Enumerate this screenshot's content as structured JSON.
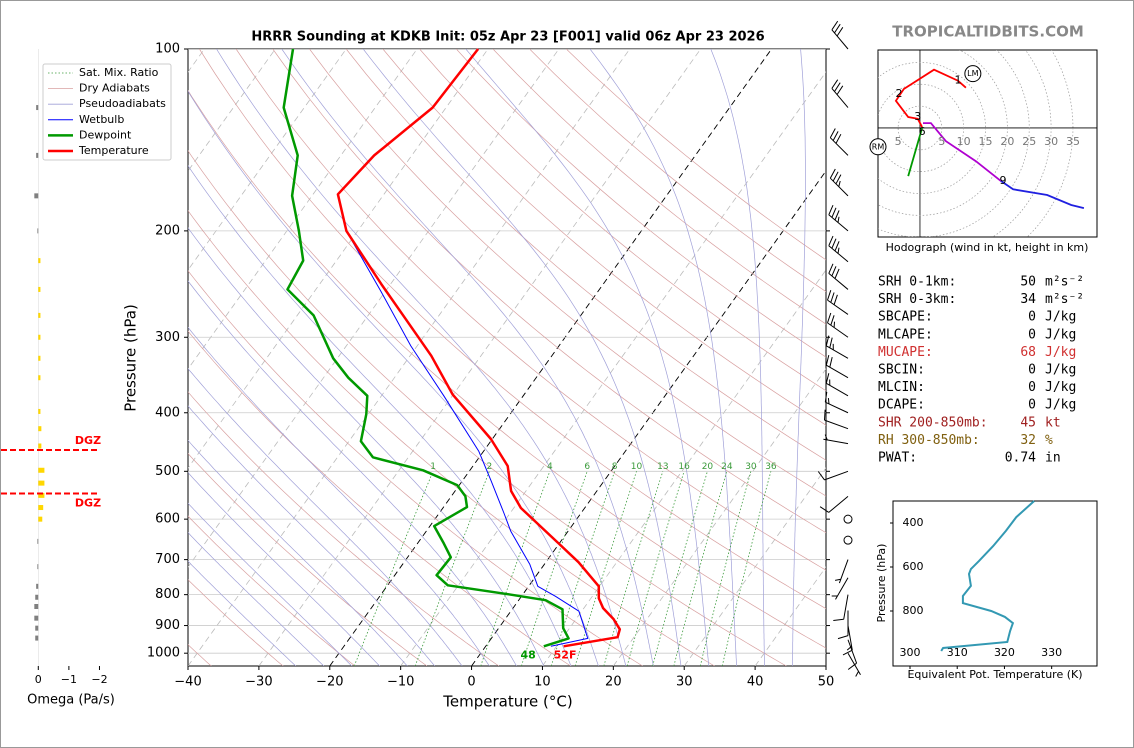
{
  "header": {
    "site": "TROPICALTIDBITS.COM"
  },
  "chart_data": [
    {
      "type": "skewt",
      "title": "HRRR Sounding at KDKB Init: 05z Apr 23 [F001] valid 06z Apr 23 2026",
      "xlabel": "Temperature (°C)",
      "ylabel": "Pressure (hPa)",
      "log_y": true,
      "grid": true,
      "xlim": [
        -40,
        50
      ],
      "ylim": [
        1050,
        100
      ],
      "xticks": [
        {
          "value": -40,
          "label": "−40"
        },
        {
          "value": -30,
          "label": "−30"
        },
        {
          "value": -20,
          "label": "−20"
        },
        {
          "value": -10,
          "label": "−10"
        },
        0,
        10,
        20,
        30,
        40,
        50
      ],
      "yticks": [
        100,
        200,
        300,
        400,
        500,
        600,
        700,
        800,
        900,
        1000
      ],
      "emphasized_isotherms": [
        -20,
        0
      ],
      "reference_lines": [
        {
          "name": "Sat. Mix. Ratio",
          "color": "#3a9a3a",
          "labels": [
            1,
            2,
            4,
            6,
            8,
            10,
            13,
            16,
            20,
            24,
            30,
            36
          ]
        },
        {
          "name": "Dry Adiabats",
          "color": "#d8a0a0"
        },
        {
          "name": "Pseudoadiabats",
          "color": "#a0a0d8"
        }
      ],
      "series": [
        {
          "name": "Wetbulb",
          "color": "#0000ff",
          "pressure": [
            974,
            945,
            852,
            805,
            775,
            712,
            628,
            586,
            519,
            463,
            375,
            310,
            252,
            200,
            174,
            150,
            125,
            100
          ],
          "values": [
            9.2,
            13.6,
            9.6,
            4.8,
            1.3,
            -2.1,
            -8.1,
            -10.9,
            -15.9,
            -20.7,
            -31.2,
            -40.9,
            -50.6,
            -61.6,
            -66.5,
            -65.3,
            -61.9,
            -61.4
          ]
        },
        {
          "name": "Dewpoint",
          "color": "#009900",
          "pressure": [
            974,
            945,
            909,
            846,
            817,
            799,
            772,
            743,
            694,
            658,
            616,
            573,
            550,
            527,
            498,
            474,
            446,
            402,
            375,
            350,
            325,
            276,
            250,
            224,
            200,
            175,
            150,
            125,
            100
          ],
          "values": [
            8.2,
            10.9,
            9.1,
            7.1,
            3.8,
            -2.0,
            -11.5,
            -14.1,
            -13.9,
            -16.3,
            -19.4,
            -16.7,
            -18.0,
            -20.3,
            -26.6,
            -35.0,
            -38.3,
            -40.3,
            -42.0,
            -46.5,
            -50.6,
            -57.7,
            -64.0,
            -64.7,
            -68.3,
            -72.8,
            -76.1,
            -82.9,
            -87.5
          ]
        },
        {
          "name": "Temperature",
          "color": "#ff0000",
          "pressure": [
            974,
            941,
            913,
            878,
            842,
            811,
            775,
            707,
            658,
            575,
            539,
            490,
            442,
            373,
            322,
            280,
            245,
            200,
            174,
            150,
            125,
            100
          ],
          "values": [
            11.0,
            17.7,
            17.2,
            15.3,
            12.7,
            11.1,
            9.9,
            4.6,
            -0.1,
            -9.0,
            -12.1,
            -15.1,
            -20.2,
            -30.1,
            -37.0,
            -44.3,
            -51.3,
            -61.6,
            -66.5,
            -65.3,
            -61.9,
            -61.4
          ]
        }
      ],
      "surface_labels": {
        "dewpoint": 48,
        "temperature": "52F"
      },
      "wind_barbs": {
        "pressure": [
          100,
          125,
          150,
          175,
          200,
          225,
          250,
          275,
          300,
          325,
          350,
          375,
          400,
          425,
          450,
          500,
          550,
          600,
          650,
          700,
          750,
          800,
          850,
          900,
          950,
          1000
        ],
        "speed": [
          30,
          30,
          30,
          35,
          35,
          35,
          30,
          30,
          25,
          25,
          20,
          15,
          15,
          10,
          5,
          10,
          10,
          0,
          0,
          5,
          5,
          10,
          10,
          15,
          10,
          5
        ],
        "direction": [
          320,
          320,
          315,
          315,
          310,
          310,
          310,
          305,
          305,
          300,
          300,
          300,
          295,
          290,
          280,
          250,
          230,
          0,
          0,
          200,
          210,
          190,
          180,
          170,
          160,
          150
        ]
      }
    },
    {
      "type": "hodograph",
      "caption": "Hodograph (wind in kt, height in km)",
      "xlim": [
        -9.6,
        40.5
      ],
      "ylim": [
        -24.9,
        17.8
      ],
      "ring_ticks": [
        {
          "value": -5,
          "label": "5"
        },
        5,
        10,
        15,
        20,
        25,
        30,
        35
      ],
      "segments": [
        {
          "color": "#ff0000",
          "u": [
            10.5,
            8.7,
            3.2,
            -3.7,
            -5.5,
            -2.7,
            -0.5,
            0.5
          ],
          "v": [
            9.2,
            10.8,
            13.3,
            8.9,
            6.2,
            2.5,
            2.1,
            0.2
          ]
        },
        {
          "color": "#009900",
          "u": [
            0.5,
            -2.7
          ],
          "v": [
            0,
            -11.0
          ]
        },
        {
          "color": "#b000d0",
          "u": [
            0.7,
            2.5,
            5.9,
            12.8,
            18.5
          ],
          "v": [
            1.1,
            1.1,
            -3.0,
            -7.6,
            -12.1
          ]
        },
        {
          "color": "#2020e0",
          "u": [
            18.5,
            21.3,
            29.1,
            34.6,
            37.5
          ],
          "v": [
            -12.1,
            -14.0,
            -15.3,
            -17.6,
            -18.3
          ]
        }
      ],
      "height_labels": {
        "values": [
          1,
          2,
          3,
          6,
          9
        ],
        "u": [
          8.7,
          -4.8,
          -0.5,
          0.5,
          19
        ],
        "v": [
          10.8,
          7.8,
          2.5,
          -0.9,
          -12.1
        ]
      },
      "motion": [
        {
          "label": "LM",
          "u": 12.1,
          "v": 12.4
        },
        {
          "label": "RM",
          "u": -9.6,
          "v": -4.3
        }
      ]
    },
    {
      "type": "profile",
      "xlabel": "Equivalent Pot. Temperature (K)",
      "ylabel": "Pressure (hPa)",
      "xlim": [
        296.4,
        339.6
      ],
      "ylim": [
        1050,
        300
      ],
      "xticks": [
        300,
        310,
        320,
        330
      ],
      "yticks": [
        400,
        600,
        800
      ],
      "color": "#3399b3",
      "pressure": [
        300,
        373,
        436,
        505,
        573,
        609,
        632,
        686,
        732,
        764,
        800,
        827,
        855,
        891,
        941,
        968,
        982
      ],
      "values": [
        326.3,
        322.5,
        320.3,
        317.6,
        314.6,
        312.9,
        312.5,
        312.9,
        311.2,
        311.2,
        317.2,
        320.1,
        321.8,
        321.2,
        320.6,
        307.0,
        306.6
      ]
    },
    {
      "type": "omega",
      "xlabel": "Omega (Pa/s)",
      "xlim": [
        0.5,
        -2.05
      ],
      "ylim": [
        1050,
        100
      ],
      "xticks": [
        0,
        {
          "value": -1,
          "label": "−1"
        },
        {
          "value": -2,
          "label": "−2"
        }
      ],
      "up_color": "#ffd700",
      "down_color": "#808080",
      "pressure": [
        125,
        150,
        175,
        200,
        224,
        250,
        276,
        300,
        325,
        350,
        398,
        425,
        454,
        498,
        523,
        548,
        574,
        600,
        653,
        719,
        775,
        808,
        837,
        875,
        909,
        944
      ],
      "values": [
        0.07,
        0.07,
        0.13,
        0.03,
        -0.07,
        -0.07,
        -0.07,
        -0.07,
        -0.07,
        -0.07,
        -0.07,
        -0.1,
        -0.1,
        -0.2,
        -0.2,
        -0.2,
        -0.16,
        -0.13,
        0.03,
        0.03,
        0.07,
        0.1,
        0.13,
        0.13,
        0.1,
        0.1
      ],
      "dgz": {
        "pressures": [
          461,
          544
        ],
        "label": "DGZ",
        "color": "#ff0000"
      }
    }
  ],
  "stats": [
    {
      "label": "SRH 0-1km:",
      "value": 50,
      "unit": "m²s⁻²",
      "color": "#000000"
    },
    {
      "label": "SRH 0-3km:",
      "value": 34,
      "unit": "m²s⁻²",
      "color": "#000000"
    },
    {
      "label": "SBCAPE:",
      "value": 0,
      "unit": "J/kg",
      "color": "#000000"
    },
    {
      "label": "MLCAPE:",
      "value": 0,
      "unit": "J/kg",
      "color": "#000000"
    },
    {
      "label": "MUCAPE:",
      "value": 68,
      "unit": "J/kg",
      "color": "#d03030"
    },
    {
      "label": "SBCIN:",
      "value": 0,
      "unit": "J/kg",
      "color": "#000000"
    },
    {
      "label": "MLCIN:",
      "value": 0,
      "unit": "J/kg",
      "color": "#000000"
    },
    {
      "label": "DCAPE:",
      "value": 0,
      "unit": "J/kg",
      "color": "#000000"
    },
    {
      "label": "SHR 200-850mb:",
      "value": 45,
      "unit": "kt",
      "color": "#a02020"
    },
    {
      "label": "RH 300-850mb:",
      "value": 32,
      "unit": "%",
      "color": "#806010"
    },
    {
      "label": "PWAT:",
      "value": 0.74,
      "unit": "in",
      "color": "#000000"
    }
  ]
}
